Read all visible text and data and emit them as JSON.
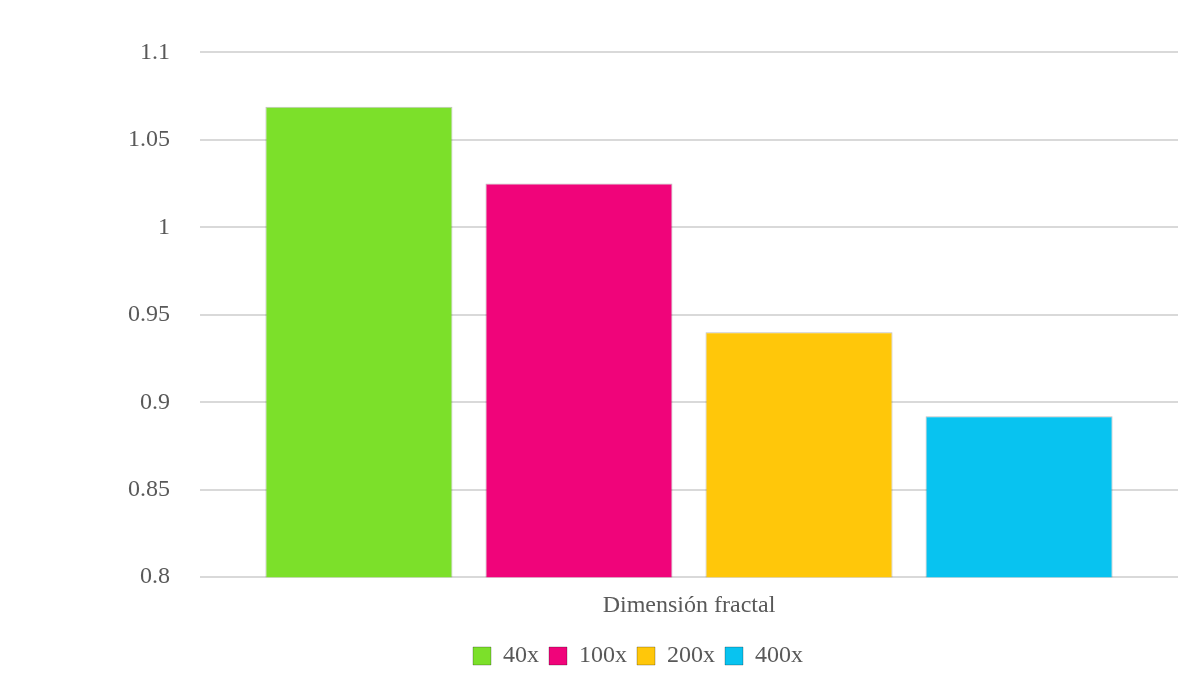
{
  "chart_data": {
    "type": "bar",
    "categories": [
      "Dimensión fractal"
    ],
    "series": [
      {
        "name": "40x",
        "color": "#7ce02a",
        "values": [
          1.069
        ]
      },
      {
        "name": "100x",
        "color": "#f0047a",
        "values": [
          1.025
        ]
      },
      {
        "name": "200x",
        "color": "#ffc70a",
        "values": [
          0.94
        ]
      },
      {
        "name": "400x",
        "color": "#08c3f0",
        "values": [
          0.892
        ]
      }
    ],
    "ylim": [
      0.8,
      1.1
    ],
    "yticks": [
      0.8,
      0.85,
      0.9,
      0.95,
      1,
      1.05,
      1.1
    ],
    "grid": "y",
    "legend": "bottom"
  }
}
